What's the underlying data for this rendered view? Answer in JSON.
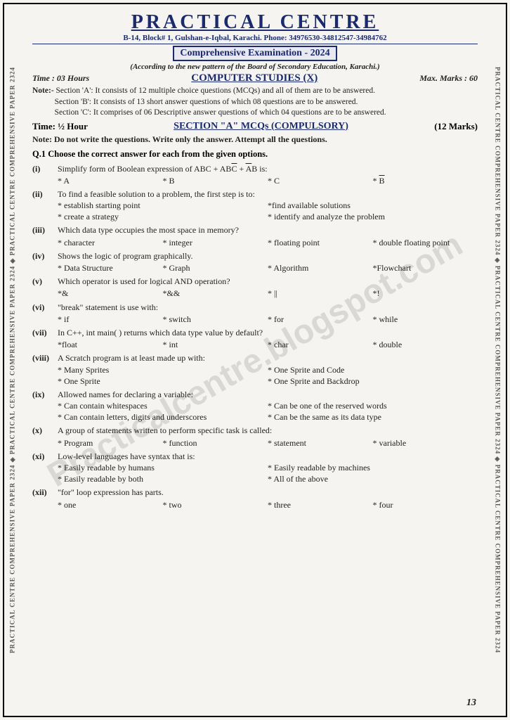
{
  "side_text": "PRACTICAL CENTRE COMPREHENSIVE PAPER 2324 ◈ PRACTICAL CENTRE COMPREHENSIVE PAPER 2324 ◈ PRACTICAL CENTRE COMPREHENSIVE PAPER 2324",
  "header": {
    "title": "PRACTICAL CENTRE",
    "address": "B-14, Block# 1, Gulshan-e-Iqbal, Karachi. Phone: 34976530-34812547-34984762",
    "exam": "Comprehensive Examination - 2024",
    "pattern": "(According to the new pattern of the Board of Secondary Education, Karachi.)",
    "time": "Time : 03 Hours",
    "subject": "COMPUTER STUDIES (X)",
    "max_marks": "Max. Marks : 60"
  },
  "notes": {
    "label": "Note:-",
    "a": "Section 'A': It consists of 12 multiple choice questions (MCQs) and all of them are to be answered.",
    "b": "Section 'B': It consists of 13 short answer questions of which 08 questions are to be answered.",
    "c": "Section 'C': It comprises of 06 Descriptive answer questions of which 04 questions are to be answered."
  },
  "section_a": {
    "time": "Time: ½ Hour",
    "title": "SECTION \"A\" MCQs (COMPULSORY)",
    "marks": "(12 Marks)",
    "instruction": "Note: Do not write the questions. Write only the answer. Attempt all the questions.",
    "q_heading": "Q.1 Choose the correct answer for each from the given options."
  },
  "q": {
    "i": {
      "num": "(i)",
      "text": "Simplify form of Boolean expression of ABC + AB̄C + ĀB is:",
      "opts": [
        "* A",
        "* B",
        "* C",
        "* B̄"
      ]
    },
    "ii": {
      "num": "(ii)",
      "text": "To find a feasible solution to a problem, the first step is to:",
      "opts": [
        "* establish starting point",
        "*find available solutions",
        "* create a strategy",
        "* identify and analyze the problem"
      ]
    },
    "iii": {
      "num": "(iii)",
      "text": "Which data type occupies the most space in memory?",
      "opts": [
        "* character",
        "* integer",
        "* floating point",
        "* double floating point"
      ]
    },
    "iv": {
      "num": "(iv)",
      "text": "Shows the logic of program graphically.",
      "opts": [
        "* Data Structure",
        "* Graph",
        "* Algorithm",
        "*Flowchart"
      ]
    },
    "v": {
      "num": "(v)",
      "text": "Which operator is used for logical AND operation?",
      "opts": [
        "*&",
        "*&&",
        "* ||",
        "*!"
      ]
    },
    "vi": {
      "num": "(vi)",
      "text": "\"break\" statement is use with:",
      "opts": [
        "* if",
        "* switch",
        "* for",
        "* while"
      ]
    },
    "vii": {
      "num": "(vii)",
      "text": "In C++, int main( ) returns which data type value by default?",
      "opts": [
        "*float",
        "* int",
        "* char",
        "* double"
      ]
    },
    "viii": {
      "num": "(viii)",
      "text": "A Scratch program is at least made up with:",
      "opts": [
        "* Many Sprites",
        "* One Sprite and Code",
        "* One Sprite",
        "* One Sprite and Backdrop"
      ]
    },
    "ix": {
      "num": "(ix)",
      "text": "Allowed names for declaring a variable:",
      "opts": [
        "* Can contain whitespaces",
        "* Can be one of the reserved words",
        "* Can contain letters, digits and underscores",
        "* Can be the same as its data type"
      ]
    },
    "x": {
      "num": "(x)",
      "text": "A group of statements written to perform specific task is called:",
      "opts": [
        "* Program",
        "* function",
        "* statement",
        "* variable"
      ]
    },
    "xi": {
      "num": "(xi)",
      "text": "Low-level languages have syntax that is:",
      "opts": [
        "* Easily readable by humans",
        "* Easily readable by machines",
        "* Easily readable by both",
        "* All of the above"
      ]
    },
    "xii": {
      "num": "(xii)",
      "text": "\"for\" loop expression has parts.",
      "opts": [
        "* one",
        "* two",
        "* three",
        "* four"
      ]
    }
  },
  "watermark": "Practicalcentre.blogspot.com",
  "page_num": "13"
}
